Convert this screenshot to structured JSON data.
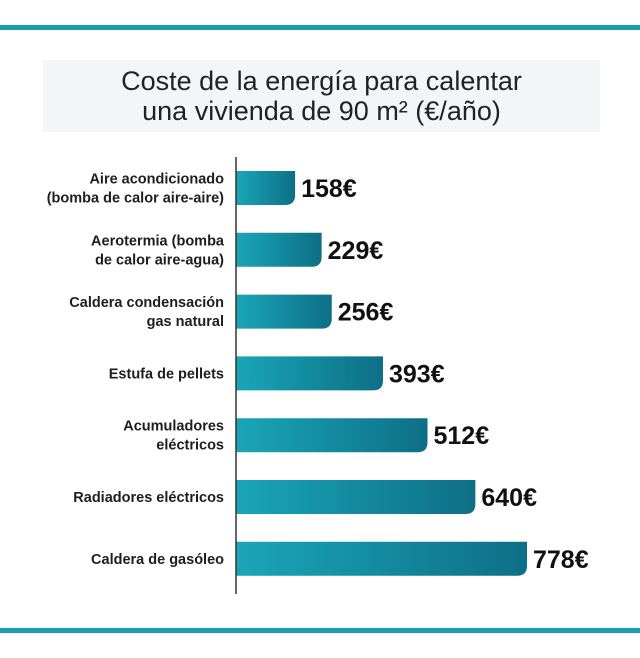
{
  "title_lines": [
    "Coste de la energía para calentar",
    "una vivienda de 90 m² (€/año)"
  ],
  "colors": {
    "accent_rule": "#1a9fb0",
    "bar_left": "#1aa6b8",
    "bar_right": "#0d6f86",
    "axis": "#333333"
  },
  "chart_data": {
    "type": "bar",
    "orientation": "horizontal",
    "title": "Coste de la energía para calentar una vivienda de 90 m² (€/año)",
    "unit": "€",
    "categories": [
      [
        "Aire acondicionado",
        "(bomba de calor aire-aire)"
      ],
      [
        "Aerotermia (bomba",
        "de calor aire-agua)"
      ],
      [
        "Caldera condensación",
        "gas natural"
      ],
      [
        "Estufa de pellets"
      ],
      [
        "Acumuladores",
        "eléctricos"
      ],
      [
        "Radiadores eléctricos"
      ],
      [
        "Caldera de gasóleo"
      ]
    ],
    "values": [
      158,
      229,
      256,
      393,
      512,
      640,
      778
    ],
    "xlim": [
      0,
      778
    ]
  }
}
